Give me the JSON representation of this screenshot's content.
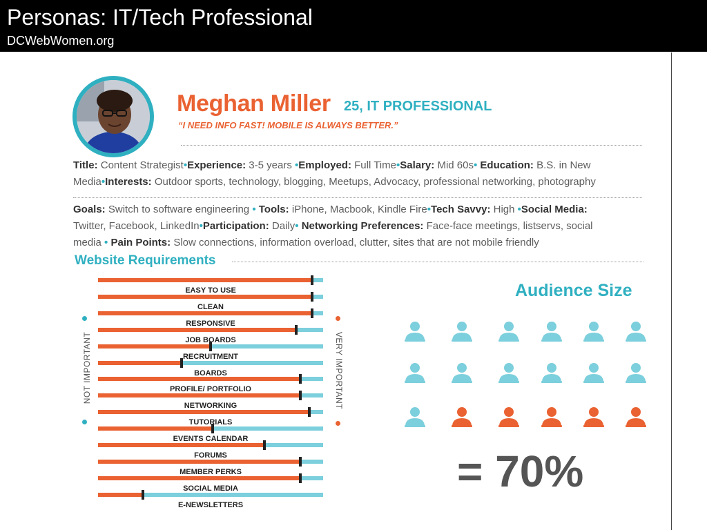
{
  "header": {
    "title": "Personas: IT/Tech Professional",
    "subtitle": "DCWebWomen.org"
  },
  "persona": {
    "name": "Meghan Miller",
    "age_role": "25, IT PROFESSIONAL",
    "quote": "“I NEED INFO FAST! MOBILE IS ALWAYS BETTER.”"
  },
  "details": {
    "title_label": "Title:",
    "title_value": "Content Strategist",
    "experience_label": "Experience:",
    "experience_value": "3-5 years",
    "employed_label": "Employed:",
    "employed_value": "Full Time",
    "salary_label": "Salary:",
    "salary_value": "Mid 60s",
    "education_label": "Education:",
    "education_value_1": "B.S. in New",
    "education_value_2": "Media",
    "interests_label": "Interests:",
    "interests_value": "Outdoor sports, technology, blogging, Meetups, Advocacy, professional networking, photography",
    "goals_label": "Goals:",
    "goals_value": "Switch to software engineering",
    "tools_label": "Tools:",
    "tools_value": "iPhone, Macbook, Kindle Fire",
    "savvy_label": "Tech Savvy:",
    "savvy_value": "High",
    "social_label": "Social Media:",
    "social_value": "Twitter, Facebook, LinkedIn",
    "participation_label": "Participation:",
    "participation_value": "Daily",
    "networking_label": "Networking Preferences:",
    "networking_value_1": "Face-face meetings, listservs, social",
    "networking_value_2": "media",
    "pain_label": "Pain Points:",
    "pain_value": "Slow connections, information overload, clutter, sites that are not mobile friendly"
  },
  "requirements": {
    "title": "Website Requirements",
    "axis_left": "NOT IMPORTANT",
    "axis_right": "VERY IMPORTANT",
    "items": [
      {
        "label": "EASY TO USE",
        "value": 0.95
      },
      {
        "label": "CLEAN",
        "value": 0.95
      },
      {
        "label": "RESPONSIVE",
        "value": 0.95
      },
      {
        "label": "JOB BOARDS",
        "value": 0.88
      },
      {
        "label": "RECRUITMENT",
        "value": 0.5
      },
      {
        "label": "BOARDS",
        "value": 0.37
      },
      {
        "label": "PROFILE/ PORTFOLIO",
        "value": 0.9
      },
      {
        "label": "NETWORKING",
        "value": 0.9
      },
      {
        "label": "TUTORIALS",
        "value": 0.94
      },
      {
        "label": "EVENTS CALENDAR",
        "value": 0.51
      },
      {
        "label": "FORUMS",
        "value": 0.74
      },
      {
        "label": "MEMBER PERKS",
        "value": 0.9
      },
      {
        "label": "SOCIAL MEDIA",
        "value": 0.9
      },
      {
        "label": "E-NEWSLETTERS",
        "value": 0.2
      }
    ]
  },
  "audience": {
    "title": "Audience Size",
    "rows": 3,
    "cols": 6,
    "highlighted": 5,
    "percent_label": "= 70%",
    "colors": {
      "base": "#7ccfdc",
      "highlight": "#ea6232"
    }
  },
  "colors": {
    "orange": "#ea6232",
    "teal": "#2fb0c1",
    "light_teal": "#7ccfdc"
  }
}
